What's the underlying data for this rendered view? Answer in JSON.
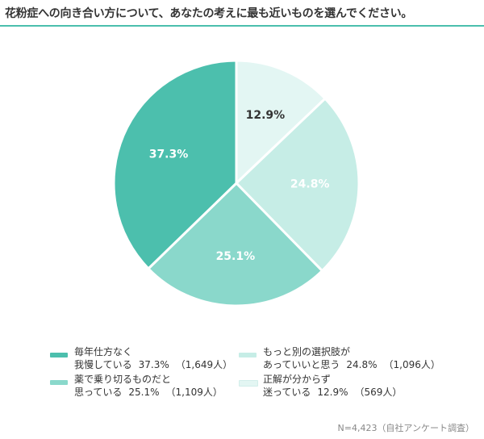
{
  "title": "花粉症への向き合い方について、あなたの考えに最も近いものを選んでください。",
  "note": "N=4,423（自社アンケート調査）",
  "colors": {
    "accent_rule": "#4bbfad",
    "label_dark": "#333333",
    "label_light": "#ffffff"
  },
  "chart_data": {
    "type": "pie",
    "title": "花粉症への向き合い方について、あなたの考えに最も近いものを選んでください。",
    "slices": [
      {
        "label_line1": "正解が分からず",
        "label_line2": "迷っている",
        "percent": 12.9,
        "percent_label": "12.9%",
        "count_label": "（569人）",
        "color": "#e3f6f3",
        "text_color": "#333333"
      },
      {
        "label_line1": "もっと別の選択肢が",
        "label_line2": "あっていいと思う",
        "percent": 24.8,
        "percent_label": "24.8%",
        "count_label": "（1,096人）",
        "color": "#c6ede6",
        "text_color": "#ffffff"
      },
      {
        "label_line1": "薬で乗り切るものだと",
        "label_line2": "思っている",
        "percent": 25.1,
        "percent_label": "25.1%",
        "count_label": "（1,109人）",
        "color": "#8ad8cb",
        "text_color": "#ffffff"
      },
      {
        "label_line1": "毎年仕方なく",
        "label_line2": "我慢している",
        "percent": 37.3,
        "percent_label": "37.3%",
        "count_label": "（1,649人）",
        "color": "#4cbfad",
        "text_color": "#ffffff"
      }
    ],
    "legend_order": [
      3,
      1,
      2,
      0
    ],
    "legend_placement": "bottom"
  }
}
